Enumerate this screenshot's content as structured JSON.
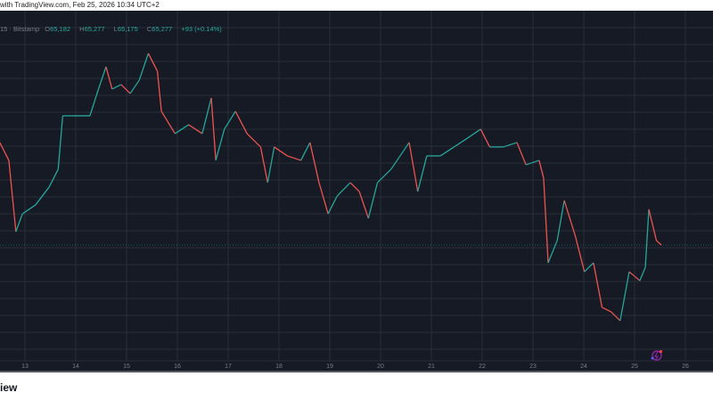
{
  "caption": "with TradingView.com, Feb 25, 2026 10:34 UTC+2",
  "legend": {
    "symbol": "15 · Bitstamp",
    "open_label": "O",
    "open": "65,182",
    "high_label": "H",
    "high": "65,277",
    "low_label": "L",
    "low": "65,175",
    "close_label": "C",
    "close": "65,277",
    "change": "+93 (+0.14%)"
  },
  "brand": "iew",
  "icons": {
    "event": "lightning-event-icon"
  },
  "colors": {
    "up": "#26a69a",
    "down": "#ef5350",
    "background": "#161a25",
    "grid": "#2a2e39"
  },
  "chart_data": {
    "type": "line",
    "x_tick_labels": [
      "13",
      "14",
      "15",
      "16",
      "17",
      "18",
      "19",
      "20",
      "21",
      "22",
      "23",
      "24",
      "25",
      "26"
    ],
    "grid": true,
    "last_price": 65277,
    "series": [
      {
        "x": [
          12.5,
          12.68,
          12.82,
          12.95,
          13.21,
          13.48,
          13.66,
          13.75,
          13.93,
          14.29,
          14.46,
          14.61,
          14.73,
          14.91,
          15.09,
          15.27,
          15.45,
          15.63,
          15.71,
          15.98,
          16.25,
          16.52,
          16.7,
          16.79,
          16.96,
          17.18,
          17.41,
          17.68,
          17.82,
          17.95,
          18.21,
          18.48,
          18.66,
          18.84,
          19.02,
          19.2,
          19.46,
          19.64,
          19.82,
          20.0,
          20.27,
          20.45,
          20.63,
          20.8,
          20.98,
          21.25,
          21.52,
          21.79,
          22.05,
          22.23,
          22.5,
          22.77,
          22.95,
          23.21,
          23.3,
          23.39,
          23.57,
          23.71,
          23.93,
          24.11,
          24.29,
          24.46,
          24.64,
          24.82,
          25.0,
          25.21,
          25.32,
          25.39,
          25.54,
          25.64
        ],
        "y": [
          71030,
          70030,
          66030,
          67030,
          67530,
          68530,
          69530,
          72530,
          72530,
          72530,
          74030,
          75280,
          74030,
          74280,
          73780,
          74530,
          76030,
          75030,
          72780,
          71530,
          72030,
          71530,
          73530,
          70030,
          71780,
          72780,
          71530,
          70780,
          68780,
          70780,
          70280,
          70030,
          71030,
          68780,
          67030,
          68030,
          68780,
          68280,
          66780,
          68780,
          69530,
          70280,
          71030,
          68280,
          70280,
          70280,
          70780,
          71280,
          71780,
          70780,
          70780,
          71030,
          69780,
          70030,
          69030,
          64280,
          65530,
          67780,
          65780,
          63780,
          64280,
          61780,
          61530,
          61030,
          63780,
          63280,
          64030,
          67280,
          65530,
          65277
        ]
      }
    ]
  }
}
